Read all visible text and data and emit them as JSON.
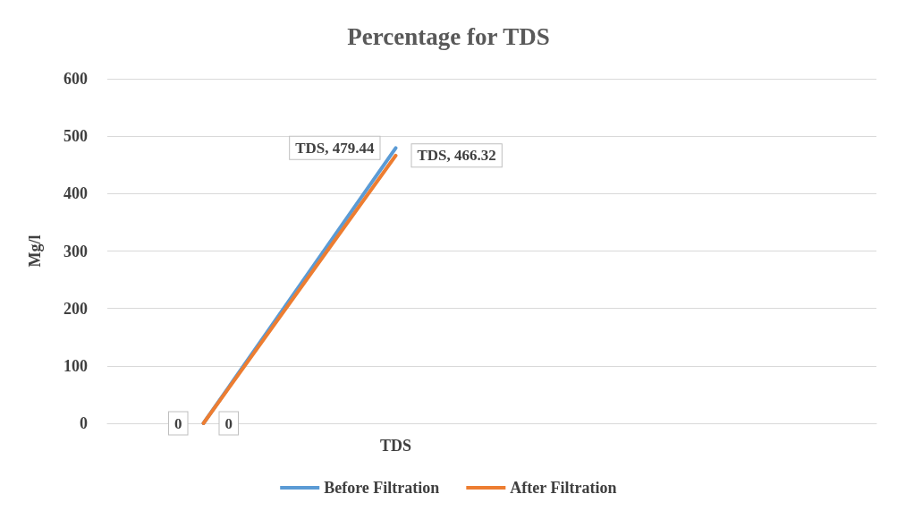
{
  "chart_data": {
    "type": "line",
    "title": "Percentage for TDS",
    "ylabel": "Mg/l",
    "categories": [
      null,
      "TDS",
      null,
      null
    ],
    "series": [
      {
        "name": "Before Filtration",
        "color": "#5b9bd5",
        "values": [
          0,
          479.44,
          null,
          null
        ],
        "value_labels": [
          "0",
          "TDS, 479.44",
          null,
          null
        ]
      },
      {
        "name": "After Filtration",
        "color": "#ed7d31",
        "values": [
          0,
          466.32,
          null,
          null
        ],
        "value_labels": [
          "0",
          "TDS, 466.32",
          null,
          null
        ]
      }
    ],
    "ylim": [
      0,
      600
    ],
    "yticks": [
      0,
      100,
      200,
      300,
      400,
      500,
      600
    ],
    "grid": "y",
    "legend": "bottom",
    "marker": "none",
    "line_style": "solid"
  }
}
